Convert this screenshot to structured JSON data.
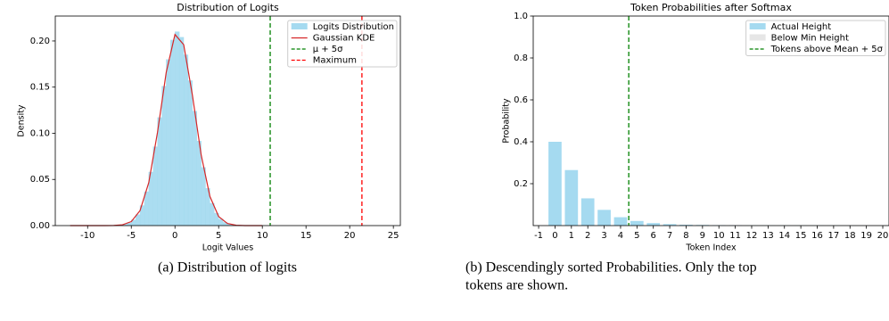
{
  "chart_data": [
    {
      "type": "histogram",
      "title": "Distribution of Logits",
      "xlabel": "Logit Values",
      "ylabel": "Density",
      "bins": [
        -8,
        -7.5,
        -7,
        -6.5,
        -6,
        -5.5,
        -5,
        -4.5,
        -4,
        -3.5,
        -3,
        -2.5,
        -2,
        -1.5,
        -1,
        -0.5,
        0,
        0.5,
        1,
        1.5,
        2,
        2.5,
        3,
        3.5,
        4,
        4.5,
        5,
        5.5,
        6,
        6.5,
        7,
        7.5,
        8
      ],
      "values": [
        0,
        0.0001,
        0.0002,
        0.0006,
        0.0013,
        0.0029,
        0.0062,
        0.0119,
        0.0217,
        0.0367,
        0.058,
        0.0854,
        0.117,
        0.151,
        0.18,
        0.201,
        0.21,
        0.204,
        0.185,
        0.157,
        0.124,
        0.0915,
        0.063,
        0.0404,
        0.0242,
        0.0135,
        0.0071,
        0.0034,
        0.0016,
        0.0007,
        0.0003,
        0.0001
      ],
      "name": "Logits Distribution",
      "color": "#87ceeb",
      "series": [
        {
          "name": "Gaussian KDE",
          "color": "#d62728",
          "x": [
            -12,
            -11,
            -10,
            -9,
            -8,
            -7,
            -6,
            -5,
            -4,
            -3,
            -2,
            -1,
            0,
            1,
            2,
            3,
            4,
            5,
            6,
            7,
            8,
            9,
            10
          ],
          "values": [
            0,
            0,
            0,
            0,
            0,
            0.0001,
            0.0009,
            0.0043,
            0.0162,
            0.0465,
            0.101,
            0.166,
            0.207,
            0.196,
            0.141,
            0.0765,
            0.0316,
            0.0098,
            0.0023,
            0.0004,
            0,
            0,
            0
          ]
        }
      ],
      "vlines": [
        {
          "name": "μ + 5σ",
          "value": 10.9,
          "color": "#008000"
        },
        {
          "name": "Maximum",
          "value": 21.4,
          "color": "#ff0000"
        }
      ],
      "xlim": [
        -13.7,
        25.8
      ],
      "xticks": [
        -10,
        -5,
        0,
        5,
        10,
        15,
        20,
        25
      ],
      "ylim": [
        0,
        0.227
      ],
      "yticks": [
        {
          "value": 0,
          "label": "0.00"
        },
        {
          "value": 0.05,
          "label": "0.05"
        },
        {
          "value": 0.1,
          "label": "0.10"
        },
        {
          "value": 0.15,
          "label": "0.15"
        },
        {
          "value": 0.2,
          "label": "0.20"
        }
      ],
      "legend": "upper right"
    },
    {
      "type": "bar",
      "title": "Token Probabilities after Softmax",
      "xlabel": "Token Index",
      "ylabel": "Probability",
      "x": [
        0,
        1,
        2,
        3,
        4,
        5,
        6,
        7,
        8,
        9,
        10,
        11,
        12,
        13,
        14,
        15,
        16,
        17,
        18,
        19,
        20
      ],
      "series": [
        {
          "name": "Actual Height",
          "color": "#87ceeb",
          "values": [
            0.4,
            0.265,
            0.13,
            0.075,
            0.04,
            0.022,
            0.012,
            0.007,
            0.004,
            0.003,
            0.002,
            0.0015,
            0.001,
            0.001,
            0.001,
            0.0008,
            0.0007,
            0.0006,
            0.0005,
            0.0004,
            0.0003
          ]
        }
      ],
      "patches": [
        {
          "name": "Below Min Height",
          "color": "#dddddd"
        }
      ],
      "vlines": [
        {
          "name": "Tokens above Mean + 5σ",
          "value": 4.5,
          "color": "#008000"
        }
      ],
      "xlim": [
        -1.33,
        20.38
      ],
      "xticks": [
        -1,
        0,
        1,
        2,
        3,
        4,
        5,
        6,
        7,
        8,
        9,
        10,
        11,
        12,
        13,
        14,
        15,
        16,
        17,
        18,
        19,
        20
      ],
      "ylim": [
        0,
        1.0
      ],
      "yticks": [
        {
          "value": 0.2,
          "label": "0.2"
        },
        {
          "value": 0.4,
          "label": "0.4"
        },
        {
          "value": 0.6,
          "label": "0.6"
        },
        {
          "value": 0.8,
          "label": "0.8"
        },
        {
          "value": 1.0,
          "label": "1.0"
        }
      ],
      "legend": "upper right"
    }
  ],
  "captions": [
    [
      "(a) Distribution of logits"
    ],
    [
      "(b) Descendingly sorted Probabilities. Only the top",
      "tokens are shown."
    ]
  ]
}
